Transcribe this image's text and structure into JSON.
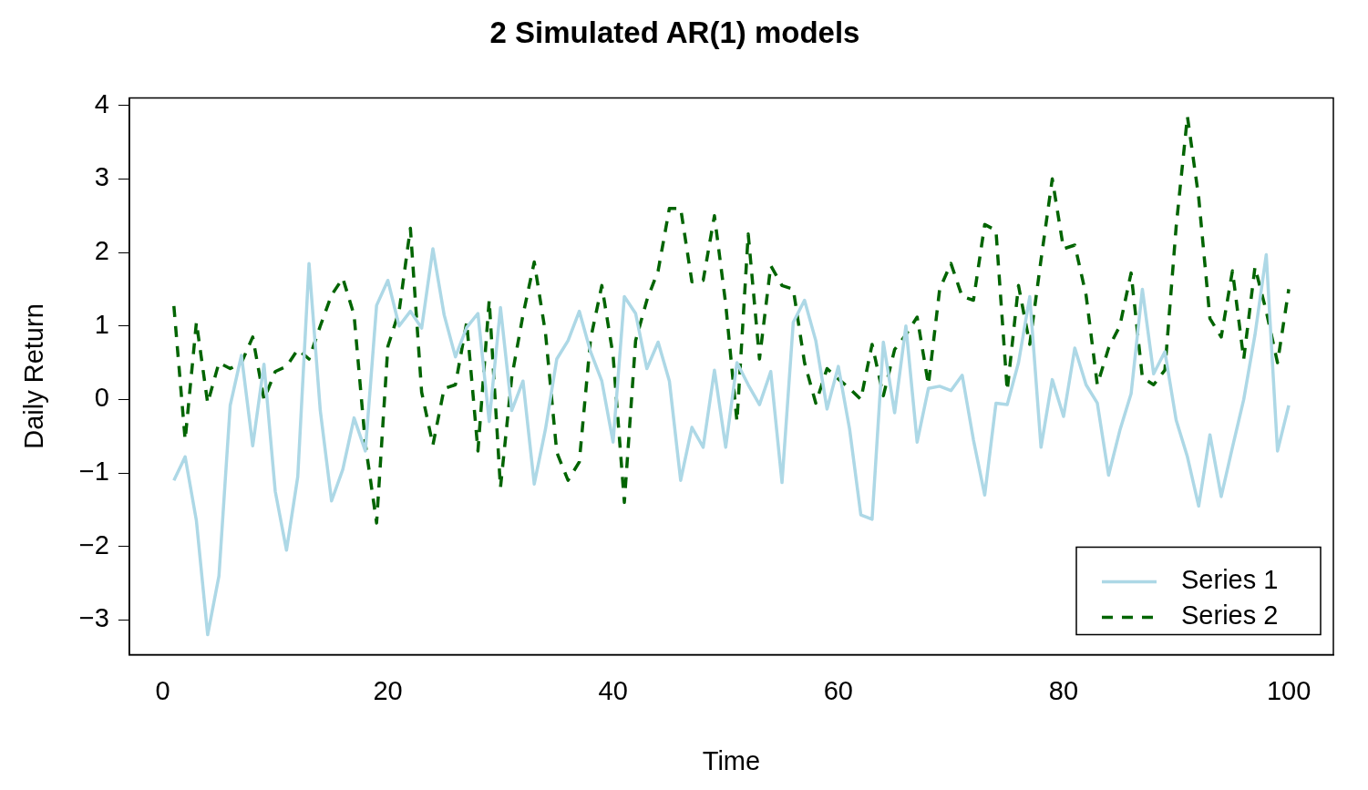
{
  "chart_data": {
    "type": "line",
    "title": "2 Simulated AR(1) models",
    "xlabel": "Time",
    "ylabel": "Daily Return",
    "x": [
      1,
      2,
      3,
      4,
      5,
      6,
      7,
      8,
      9,
      10,
      11,
      12,
      13,
      14,
      15,
      16,
      17,
      18,
      19,
      20,
      21,
      22,
      23,
      24,
      25,
      26,
      27,
      28,
      29,
      30,
      31,
      32,
      33,
      34,
      35,
      36,
      37,
      38,
      39,
      40,
      41,
      42,
      43,
      44,
      45,
      46,
      47,
      48,
      49,
      50,
      51,
      52,
      53,
      54,
      55,
      56,
      57,
      58,
      59,
      60,
      61,
      62,
      63,
      64,
      65,
      66,
      67,
      68,
      69,
      70,
      71,
      72,
      73,
      74,
      75,
      76,
      77,
      78,
      79,
      80,
      81,
      82,
      83,
      84,
      85,
      86,
      87,
      88,
      89,
      90,
      91,
      92,
      93,
      94,
      95,
      96,
      97,
      98,
      99,
      100
    ],
    "series": [
      {
        "name": "Series 1",
        "color": "#add8e6",
        "line_style": "solid",
        "values": [
          -1.1,
          -0.78,
          -1.65,
          -3.2,
          -2.4,
          -0.08,
          0.6,
          -0.63,
          0.48,
          -1.25,
          -2.05,
          -1.05,
          1.85,
          -0.15,
          -1.38,
          -0.95,
          -0.25,
          -0.7,
          1.28,
          1.62,
          1.0,
          1.2,
          0.97,
          2.05,
          1.15,
          0.58,
          0.98,
          1.17,
          -0.3,
          1.25,
          -0.15,
          0.25,
          -1.15,
          -0.4,
          0.55,
          0.8,
          1.2,
          0.65,
          0.25,
          -0.58,
          1.4,
          1.17,
          0.42,
          0.78,
          0.25,
          -1.1,
          -0.38,
          -0.65,
          0.4,
          -0.65,
          0.5,
          0.2,
          -0.07,
          0.38,
          -1.13,
          1.05,
          1.35,
          0.8,
          -0.13,
          0.45,
          -0.4,
          -1.57,
          -1.63,
          0.78,
          -0.18,
          1.0,
          -0.58,
          0.15,
          0.18,
          0.12,
          0.33,
          -0.55,
          -1.3,
          -0.05,
          -0.07,
          0.5,
          1.4,
          -0.65,
          0.27,
          -0.23,
          0.7,
          0.2,
          -0.05,
          -1.03,
          -0.42,
          0.08,
          1.5,
          0.35,
          0.65,
          -0.28,
          -0.78,
          -1.45,
          -0.48,
          -1.32,
          -0.65,
          0.0,
          0.88,
          1.97,
          -0.7,
          -0.08
        ]
      },
      {
        "name": "Series 2",
        "color": "#006400",
        "line_style": "dashed",
        "values": [
          1.27,
          -0.55,
          1.05,
          -0.05,
          0.5,
          0.42,
          0.5,
          0.85,
          0.0,
          0.38,
          0.45,
          0.68,
          0.55,
          1.0,
          1.42,
          1.65,
          1.15,
          -0.6,
          -1.68,
          0.72,
          1.2,
          2.33,
          0.1,
          -0.62,
          0.15,
          0.2,
          1.05,
          -0.7,
          1.35,
          -1.2,
          0.3,
          1.15,
          1.87,
          0.9,
          -0.72,
          -1.1,
          -0.85,
          0.82,
          1.55,
          0.6,
          -1.4,
          0.8,
          1.35,
          1.75,
          2.6,
          2.6,
          1.6,
          1.62,
          2.5,
          1.3,
          -0.3,
          2.25,
          0.55,
          1.82,
          1.55,
          1.5,
          0.5,
          -0.05,
          0.42,
          0.28,
          0.15,
          0.0,
          0.75,
          0.05,
          0.68,
          0.88,
          1.12,
          0.2,
          1.5,
          1.85,
          1.4,
          1.35,
          2.38,
          2.3,
          0.12,
          1.55,
          0.75,
          1.9,
          3.0,
          2.05,
          2.1,
          1.42,
          0.2,
          0.7,
          1.0,
          1.72,
          0.3,
          0.2,
          0.4,
          2.35,
          3.85,
          2.75,
          1.1,
          0.85,
          1.75,
          0.55,
          1.8,
          1.2,
          0.5,
          1.5
        ]
      }
    ],
    "xlim": [
      -2.96,
      103.96
    ],
    "xticks": [
      0,
      20,
      40,
      60,
      80,
      100
    ],
    "ylim": [
      -3.47,
      4.1
    ],
    "yticks": [
      {
        "value": -3,
        "label": "−3"
      },
      {
        "value": -2,
        "label": "−2"
      },
      {
        "value": -1,
        "label": "−1"
      },
      0,
      1,
      2,
      3,
      4
    ],
    "grid": false,
    "legend": "bottom right"
  }
}
